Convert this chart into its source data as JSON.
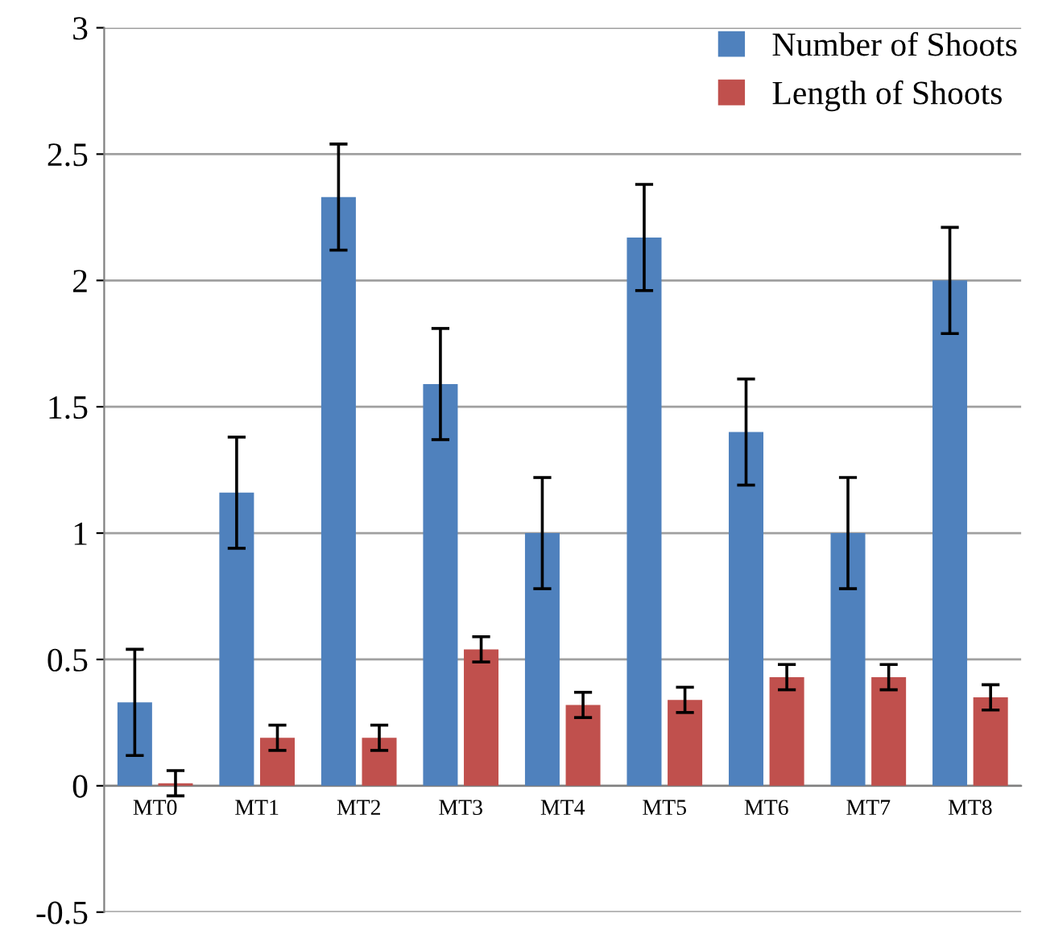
{
  "chart_data": {
    "type": "bar",
    "categories": [
      "MT0",
      "MT1",
      "MT2",
      "MT3",
      "MT4",
      "MT5",
      "MT6",
      "MT7",
      "MT8"
    ],
    "series": [
      {
        "name": "Number of Shoots",
        "color": "#4f81bd",
        "values": [
          0.33,
          1.16,
          2.33,
          1.59,
          1.0,
          2.17,
          1.4,
          1.0,
          2.0
        ],
        "errors": [
          0.21,
          0.22,
          0.21,
          0.22,
          0.22,
          0.21,
          0.21,
          0.22,
          0.21
        ]
      },
      {
        "name": "Length of Shoots",
        "color": "#c0504d",
        "values": [
          0.01,
          0.19,
          0.19,
          0.54,
          0.32,
          0.34,
          0.43,
          0.43,
          0.35
        ],
        "errors": [
          0.05,
          0.05,
          0.05,
          0.05,
          0.05,
          0.05,
          0.05,
          0.05,
          0.05
        ]
      }
    ],
    "ylim": [
      -0.5,
      3
    ],
    "yticks": [
      -0.5,
      0,
      0.5,
      1,
      1.5,
      2,
      2.5,
      3
    ],
    "grid": "y",
    "legend": "top right"
  }
}
